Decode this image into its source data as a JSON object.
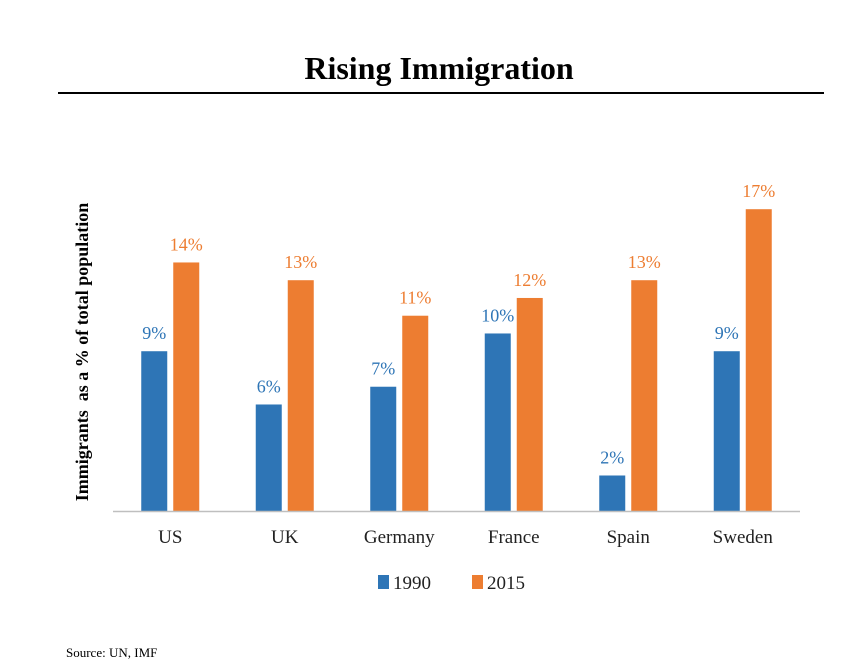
{
  "chart_data": {
    "type": "bar",
    "title": "Rising Immigration",
    "xlabel": "",
    "ylabel": "Immigrants  as a % of total population",
    "categories": [
      "US",
      "UK",
      "Germany",
      "France",
      "Spain",
      "Sweden"
    ],
    "series": [
      {
        "name": "1990",
        "values": [
          9,
          6,
          7,
          10,
          2,
          9
        ],
        "labels": [
          "9%",
          "6%",
          "7%",
          "10%",
          "2%",
          "9%"
        ],
        "color": "#2e75b6"
      },
      {
        "name": "2015",
        "values": [
          14,
          13,
          11,
          12,
          13,
          17
        ],
        "labels": [
          "14%",
          "13%",
          "11%",
          "12%",
          "13%",
          "17%"
        ],
        "color": "#ed7d31"
      }
    ],
    "ylim": [
      0,
      17.8
    ],
    "grid": false,
    "legend": "bottom",
    "axis_color": "#bfbfbf"
  },
  "footer": {
    "source": "Source: UN, IMF"
  }
}
